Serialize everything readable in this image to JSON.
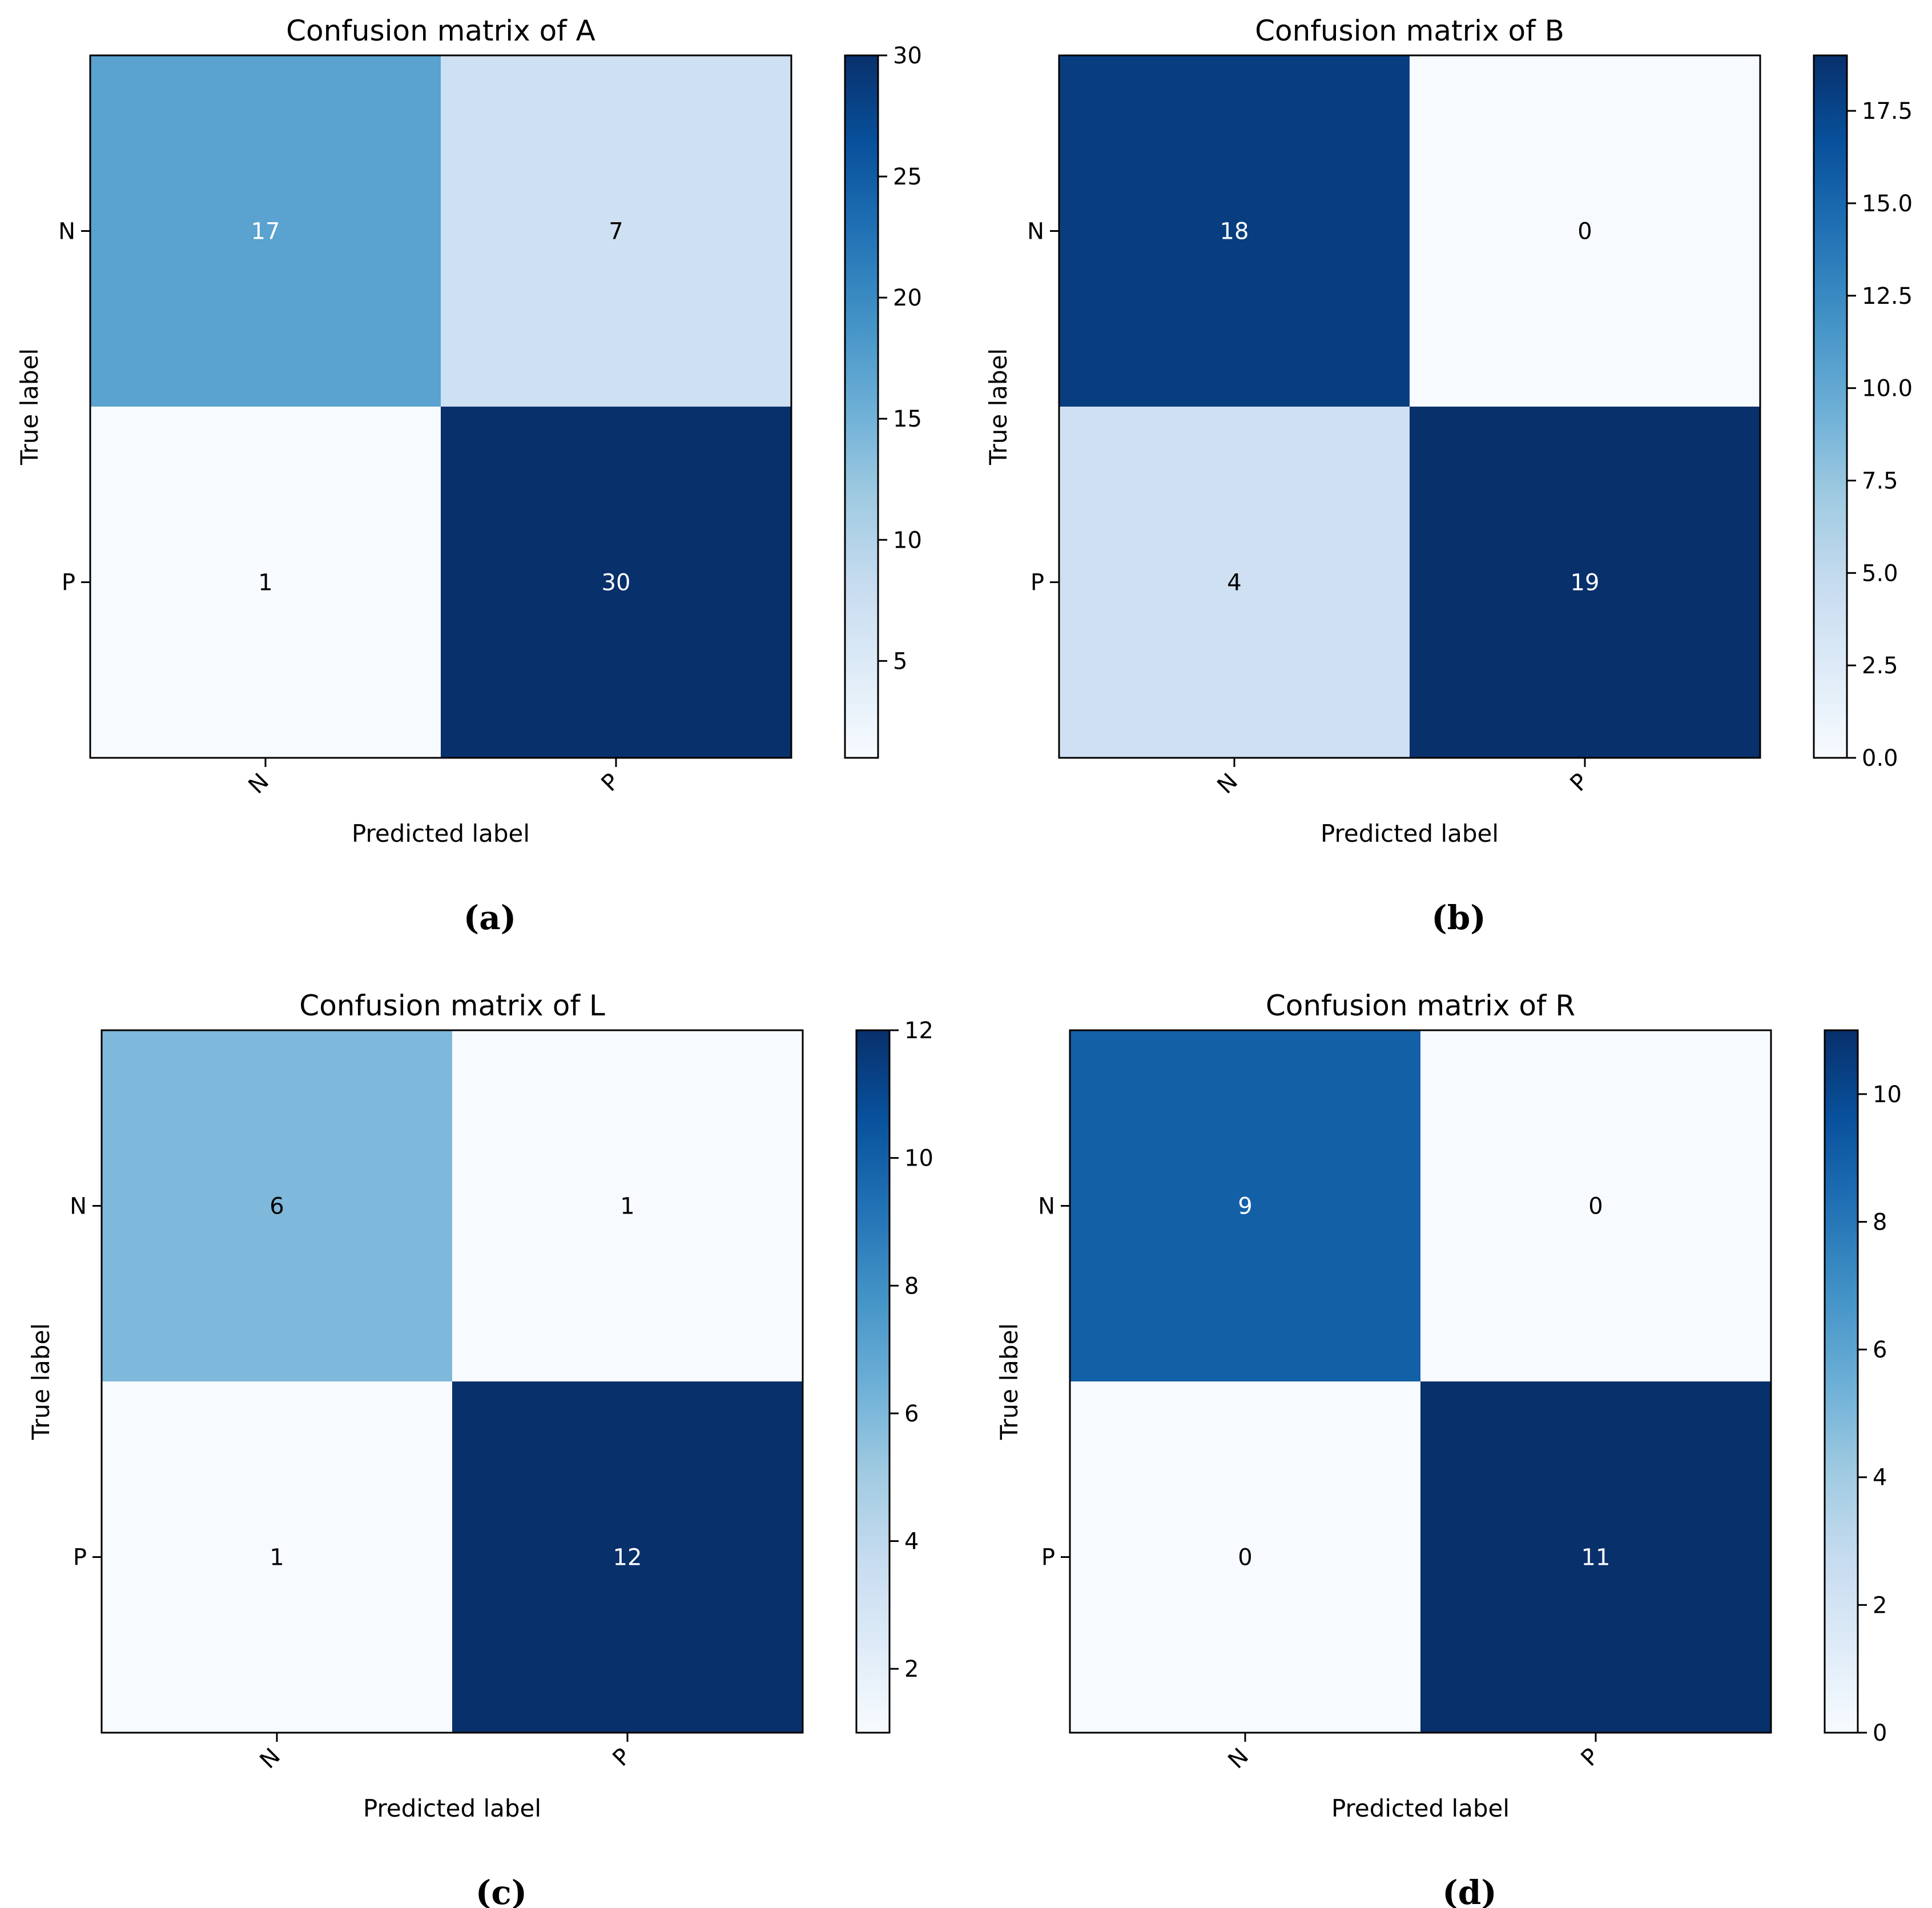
{
  "colors": {
    "scale_low": "#f7fbff",
    "scale_high": "#08306b",
    "text_light": "#ffffff",
    "text_dark": "#000000"
  },
  "chart_data": [
    {
      "type": "heatmap",
      "panel_label": "(a)",
      "title": "Confusion matrix of A",
      "xlabel": "Predicted label",
      "ylabel": "True label",
      "x_tick_labels": [
        "N",
        "P"
      ],
      "y_tick_labels": [
        "N",
        "P"
      ],
      "matrix": [
        [
          17,
          7
        ],
        [
          1,
          30
        ]
      ],
      "colorbar": {
        "min": 1,
        "max": 30,
        "ticks": [
          5,
          10,
          15,
          20,
          25,
          30
        ],
        "tick_labels": [
          "5",
          "10",
          "15",
          "20",
          "25",
          "30"
        ]
      },
      "colormap": "Blues"
    },
    {
      "type": "heatmap",
      "panel_label": "(b)",
      "title": "Confusion matrix of B",
      "xlabel": "Predicted label",
      "ylabel": "True label",
      "x_tick_labels": [
        "N",
        "P"
      ],
      "y_tick_labels": [
        "N",
        "P"
      ],
      "matrix": [
        [
          18,
          0
        ],
        [
          4,
          19
        ]
      ],
      "colorbar": {
        "min": 0,
        "max": 19,
        "ticks": [
          0,
          2.5,
          5,
          7.5,
          10,
          12.5,
          15,
          17.5
        ],
        "tick_labels": [
          "0.0",
          "2.5",
          "5.0",
          "7.5",
          "10.0",
          "12.5",
          "15.0",
          "17.5"
        ]
      },
      "colormap": "Blues"
    },
    {
      "type": "heatmap",
      "panel_label": "(c)",
      "title": "Confusion matrix of L",
      "xlabel": "Predicted label",
      "ylabel": "True label",
      "x_tick_labels": [
        "N",
        "P"
      ],
      "y_tick_labels": [
        "N",
        "P"
      ],
      "matrix": [
        [
          6,
          1
        ],
        [
          1,
          12
        ]
      ],
      "colorbar": {
        "min": 1,
        "max": 12,
        "ticks": [
          2,
          4,
          6,
          8,
          10,
          12
        ],
        "tick_labels": [
          "2",
          "4",
          "6",
          "8",
          "10",
          "12"
        ]
      },
      "colormap": "Blues"
    },
    {
      "type": "heatmap",
      "panel_label": "(d)",
      "title": "Confusion matrix of R",
      "xlabel": "Predicted label",
      "ylabel": "True label",
      "x_tick_labels": [
        "N",
        "P"
      ],
      "y_tick_labels": [
        "N",
        "P"
      ],
      "matrix": [
        [
          9,
          0
        ],
        [
          0,
          11
        ]
      ],
      "colorbar": {
        "min": 0,
        "max": 11,
        "ticks": [
          0,
          2,
          4,
          6,
          8,
          10
        ],
        "tick_labels": [
          "0",
          "2",
          "4",
          "6",
          "8",
          "10"
        ]
      },
      "colormap": "Blues"
    }
  ]
}
